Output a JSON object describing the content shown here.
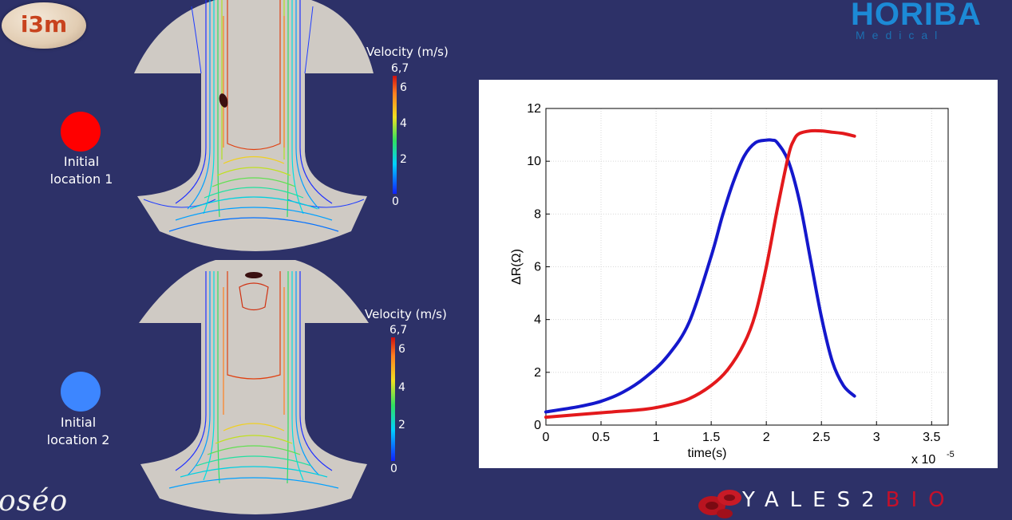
{
  "logos": {
    "i3m": "i3m",
    "horiba": "HORIBA",
    "horiba_sub": "Medical",
    "oseo": "oséo",
    "yales_main": "YALES2",
    "yales_bio": "BIO"
  },
  "locations": [
    {
      "label_line1": "Initial",
      "label_line2": "location 1",
      "color": "#ff0000"
    },
    {
      "label_line1": "Initial",
      "label_line2": "location 2",
      "color": "#3d86ff"
    }
  ],
  "colorbars": [
    {
      "title": "Velocity (m/s)",
      "max_label": "6,7",
      "ticks": [
        "6",
        "4",
        "2",
        "0"
      ]
    },
    {
      "title": "Velocity (m/s)",
      "max_label": "6,7",
      "ticks": [
        "6",
        "4",
        "2",
        "0"
      ]
    }
  ],
  "colors": {
    "background": "#2d3168",
    "red_curve": "#e3191c",
    "blue_curve": "#1418cc"
  },
  "chart_data": {
    "type": "line",
    "xlabel": "time(s)",
    "ylabel": "ΔR(Ω)",
    "x_multiplier_label": "x 10",
    "x_multiplier_exp": "-5",
    "xlim": [
      0,
      3.65
    ],
    "ylim": [
      0,
      12
    ],
    "x_ticks": [
      "0",
      "0.5",
      "1",
      "1.5",
      "2",
      "2.5",
      "3",
      "3.5"
    ],
    "y_ticks": [
      "0",
      "2",
      "4",
      "6",
      "8",
      "10",
      "12"
    ],
    "grid": true,
    "series": [
      {
        "color": "#1418cc",
        "x": [
          0,
          0.3,
          0.5,
          0.7,
          0.9,
          1.1,
          1.3,
          1.5,
          1.6,
          1.7,
          1.8,
          1.9,
          2.0,
          2.05,
          2.1,
          2.2,
          2.3,
          2.4,
          2.5,
          2.6,
          2.7,
          2.8
        ],
        "y": [
          0.5,
          0.7,
          0.9,
          1.25,
          1.8,
          2.6,
          3.9,
          6.4,
          7.9,
          9.2,
          10.2,
          10.7,
          10.8,
          10.8,
          10.7,
          10.0,
          8.5,
          6.3,
          4.1,
          2.4,
          1.5,
          1.1
        ]
      },
      {
        "color": "#e3191c",
        "x": [
          0,
          0.3,
          0.6,
          0.9,
          1.1,
          1.3,
          1.5,
          1.65,
          1.8,
          1.9,
          2.0,
          2.1,
          2.2,
          2.25,
          2.3,
          2.4,
          2.5,
          2.6,
          2.7,
          2.8
        ],
        "y": [
          0.3,
          0.4,
          0.5,
          0.6,
          0.75,
          1.0,
          1.5,
          2.1,
          3.1,
          4.2,
          6.0,
          8.2,
          10.2,
          10.8,
          11.05,
          11.15,
          11.15,
          11.1,
          11.05,
          10.95
        ]
      }
    ]
  }
}
